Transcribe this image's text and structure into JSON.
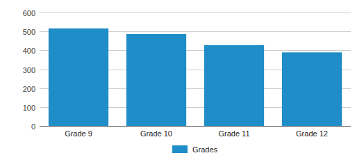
{
  "chart_data": {
    "type": "bar",
    "categories": [
      "Grade 9",
      "Grade 10",
      "Grade 11",
      "Grade 12"
    ],
    "series": [
      {
        "name": "Grades",
        "color": "#1f8dc8",
        "values": [
          516,
          486,
          427,
          389
        ]
      }
    ],
    "ylim": [
      0,
      600
    ],
    "yticks": [
      0,
      100,
      200,
      300,
      400,
      500,
      600
    ],
    "grid": true,
    "legend": "bottom"
  }
}
